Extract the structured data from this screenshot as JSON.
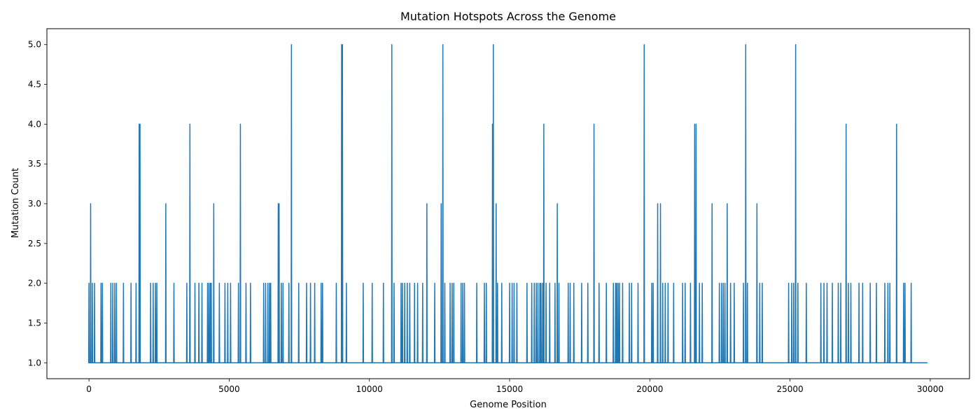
{
  "chart_data": {
    "type": "line",
    "title": "Mutation Hotspots Across the Genome",
    "xlabel": "Genome Position",
    "ylabel": "Mutation Count",
    "xlim": [
      -1500,
      31400
    ],
    "ylim": [
      0.8,
      5.2
    ],
    "xticks": [
      0,
      5000,
      10000,
      15000,
      20000,
      25000,
      30000
    ],
    "yticks": [
      1.0,
      1.5,
      2.0,
      2.5,
      3.0,
      3.5,
      4.0,
      4.5,
      5.0
    ],
    "grid": false,
    "baseline": 1,
    "x_range": [
      0,
      29900
    ],
    "color": "#1f77b4",
    "series": [
      {
        "spikes": [
          [
            0,
            2
          ],
          [
            60,
            3
          ],
          [
            120,
            2
          ],
          [
            200,
            2
          ],
          [
            430,
            2
          ],
          [
            480,
            2
          ],
          [
            780,
            2
          ],
          [
            850,
            2
          ],
          [
            920,
            2
          ],
          [
            980,
            2
          ],
          [
            1230,
            2
          ],
          [
            1500,
            2
          ],
          [
            1680,
            2
          ],
          [
            1790,
            4
          ],
          [
            1820,
            4
          ],
          [
            2200,
            2
          ],
          [
            2290,
            2
          ],
          [
            2370,
            2
          ],
          [
            2420,
            2
          ],
          [
            2740,
            3
          ],
          [
            3030,
            2
          ],
          [
            3490,
            2
          ],
          [
            3600,
            4
          ],
          [
            3780,
            2
          ],
          [
            3920,
            2
          ],
          [
            4030,
            2
          ],
          [
            4230,
            2
          ],
          [
            4280,
            2
          ],
          [
            4330,
            2
          ],
          [
            4360,
            2
          ],
          [
            4450,
            3
          ],
          [
            4650,
            2
          ],
          [
            4850,
            2
          ],
          [
            4950,
            2
          ],
          [
            5050,
            2
          ],
          [
            5330,
            2
          ],
          [
            5400,
            4
          ],
          [
            5600,
            2
          ],
          [
            5760,
            2
          ],
          [
            6230,
            2
          ],
          [
            6300,
            2
          ],
          [
            6380,
            2
          ],
          [
            6440,
            2
          ],
          [
            6480,
            2
          ],
          [
            6750,
            3
          ],
          [
            6780,
            3
          ],
          [
            6860,
            2
          ],
          [
            6920,
            2
          ],
          [
            7130,
            2
          ],
          [
            7220,
            5
          ],
          [
            7480,
            2
          ],
          [
            7760,
            2
          ],
          [
            7900,
            2
          ],
          [
            8050,
            2
          ],
          [
            8280,
            2
          ],
          [
            8330,
            2
          ],
          [
            8820,
            2
          ],
          [
            9010,
            5
          ],
          [
            9040,
            5
          ],
          [
            9180,
            2
          ],
          [
            9780,
            2
          ],
          [
            10100,
            2
          ],
          [
            10500,
            2
          ],
          [
            10800,
            5
          ],
          [
            10880,
            2
          ],
          [
            11130,
            2
          ],
          [
            11180,
            2
          ],
          [
            11260,
            2
          ],
          [
            11350,
            2
          ],
          [
            11440,
            2
          ],
          [
            11610,
            2
          ],
          [
            11720,
            2
          ],
          [
            11900,
            2
          ],
          [
            12050,
            3
          ],
          [
            12330,
            2
          ],
          [
            12560,
            3
          ],
          [
            12620,
            5
          ],
          [
            12690,
            2
          ],
          [
            12880,
            2
          ],
          [
            12950,
            2
          ],
          [
            13010,
            2
          ],
          [
            13270,
            2
          ],
          [
            13330,
            2
          ],
          [
            13390,
            2
          ],
          [
            13830,
            2
          ],
          [
            14100,
            2
          ],
          [
            14170,
            2
          ],
          [
            14390,
            4
          ],
          [
            14420,
            5
          ],
          [
            14520,
            3
          ],
          [
            14570,
            2
          ],
          [
            14720,
            2
          ],
          [
            15000,
            2
          ],
          [
            15090,
            2
          ],
          [
            15160,
            2
          ],
          [
            15260,
            2
          ],
          [
            15620,
            2
          ],
          [
            15790,
            2
          ],
          [
            15880,
            2
          ],
          [
            15950,
            2
          ],
          [
            16010,
            2
          ],
          [
            16080,
            2
          ],
          [
            16120,
            2
          ],
          [
            16180,
            2
          ],
          [
            16220,
            4
          ],
          [
            16300,
            2
          ],
          [
            16430,
            2
          ],
          [
            16620,
            2
          ],
          [
            16700,
            3
          ],
          [
            16760,
            2
          ],
          [
            17090,
            2
          ],
          [
            17160,
            2
          ],
          [
            17290,
            2
          ],
          [
            17570,
            2
          ],
          [
            17790,
            2
          ],
          [
            18010,
            4
          ],
          [
            18190,
            2
          ],
          [
            18450,
            2
          ],
          [
            18700,
            2
          ],
          [
            18780,
            2
          ],
          [
            18820,
            2
          ],
          [
            18870,
            2
          ],
          [
            18920,
            2
          ],
          [
            19030,
            2
          ],
          [
            19270,
            2
          ],
          [
            19350,
            2
          ],
          [
            19580,
            2
          ],
          [
            19800,
            5
          ],
          [
            20070,
            2
          ],
          [
            20120,
            2
          ],
          [
            20280,
            3
          ],
          [
            20380,
            3
          ],
          [
            20460,
            2
          ],
          [
            20550,
            2
          ],
          [
            20650,
            2
          ],
          [
            20850,
            2
          ],
          [
            21170,
            2
          ],
          [
            21260,
            2
          ],
          [
            21450,
            2
          ],
          [
            21600,
            4
          ],
          [
            21650,
            4
          ],
          [
            21770,
            2
          ],
          [
            21870,
            2
          ],
          [
            22220,
            3
          ],
          [
            22480,
            2
          ],
          [
            22560,
            2
          ],
          [
            22620,
            2
          ],
          [
            22680,
            2
          ],
          [
            22760,
            3
          ],
          [
            22880,
            2
          ],
          [
            23010,
            2
          ],
          [
            23340,
            2
          ],
          [
            23420,
            5
          ],
          [
            23480,
            2
          ],
          [
            23820,
            3
          ],
          [
            23920,
            2
          ],
          [
            24010,
            2
          ],
          [
            24950,
            2
          ],
          [
            25060,
            2
          ],
          [
            25130,
            2
          ],
          [
            25200,
            5
          ],
          [
            25280,
            2
          ],
          [
            25580,
            2
          ],
          [
            26100,
            2
          ],
          [
            26210,
            2
          ],
          [
            26320,
            2
          ],
          [
            26510,
            2
          ],
          [
            26720,
            2
          ],
          [
            26810,
            2
          ],
          [
            27000,
            4
          ],
          [
            27080,
            2
          ],
          [
            27170,
            2
          ],
          [
            27460,
            2
          ],
          [
            27590,
            2
          ],
          [
            27860,
            2
          ],
          [
            28080,
            2
          ],
          [
            28380,
            2
          ],
          [
            28490,
            2
          ],
          [
            28560,
            2
          ],
          [
            28800,
            4
          ],
          [
            29050,
            2
          ],
          [
            29100,
            2
          ],
          [
            29320,
            2
          ]
        ]
      }
    ]
  }
}
